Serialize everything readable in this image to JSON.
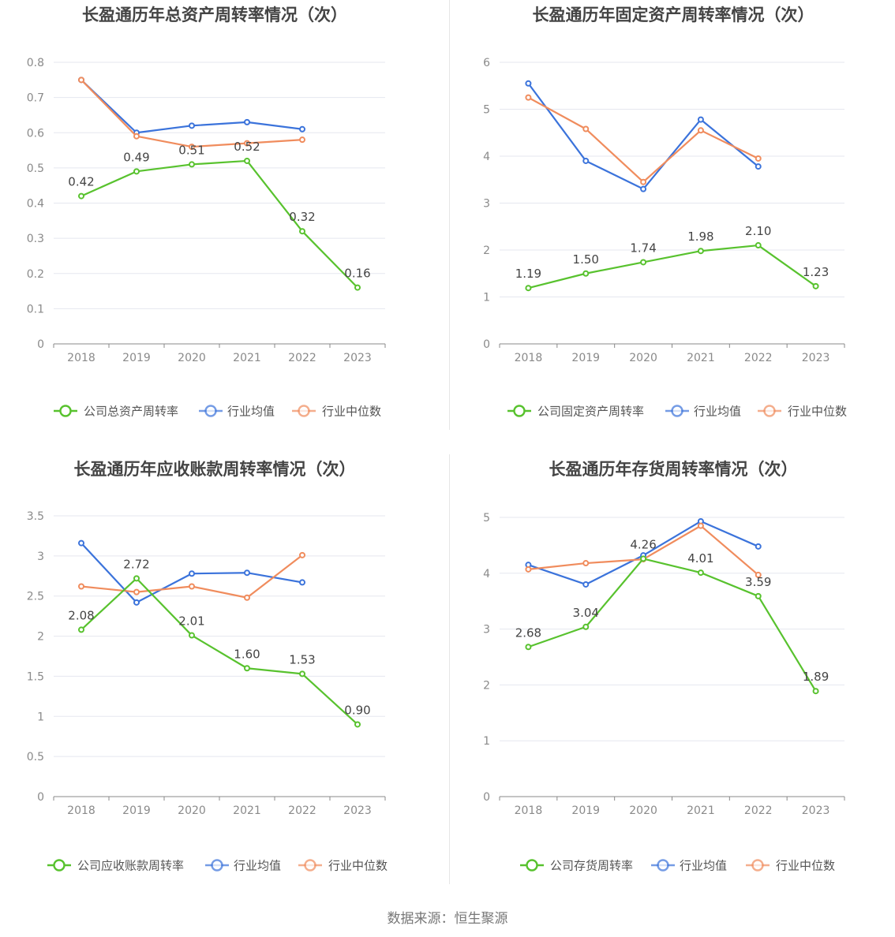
{
  "footer": "数据来源：恒生聚源",
  "colors": {
    "company": "#58c22e",
    "avg": "#3b73db",
    "median": "#f08c5d",
    "grid": "#e5e7ef",
    "axis": "#888888"
  },
  "chart_data": [
    {
      "type": "line",
      "title": "长盈通历年总资产周转率情况（次）",
      "x": [
        "2018",
        "2019",
        "2020",
        "2021",
        "2022",
        "2023"
      ],
      "yticks": [
        "0",
        "0.1",
        "0.2",
        "0.3",
        "0.4",
        "0.5",
        "0.6",
        "0.7",
        "0.8"
      ],
      "ylim": [
        0,
        0.8
      ],
      "series": [
        {
          "name": "公司总资产周转率",
          "key": "company",
          "values": [
            0.42,
            0.49,
            0.51,
            0.52,
            0.32,
            0.16
          ],
          "labels": [
            "0.42",
            "0.49",
            "0.51",
            "0.52",
            "0.32",
            "0.16"
          ]
        },
        {
          "name": "行业均值",
          "key": "avg",
          "values": [
            0.75,
            0.6,
            0.62,
            0.63,
            0.61,
            null
          ]
        },
        {
          "name": "行业中位数",
          "key": "median",
          "values": [
            0.75,
            0.59,
            0.56,
            0.57,
            0.58,
            null
          ]
        }
      ],
      "legend": "bottom"
    },
    {
      "type": "line",
      "title": "长盈通历年固定资产周转率情况（次）",
      "x": [
        "2018",
        "2019",
        "2020",
        "2021",
        "2022",
        "2023"
      ],
      "yticks": [
        "0",
        "1",
        "2",
        "3",
        "4",
        "5",
        "6"
      ],
      "ylim": [
        0,
        6
      ],
      "series": [
        {
          "name": "公司固定资产周转率",
          "key": "company",
          "values": [
            1.19,
            1.5,
            1.74,
            1.98,
            2.1,
            1.23
          ],
          "labels": [
            "1.19",
            "1.50",
            "1.74",
            "1.98",
            "2.10",
            "1.23"
          ]
        },
        {
          "name": "行业均值",
          "key": "avg",
          "values": [
            5.55,
            3.9,
            3.3,
            4.78,
            3.78,
            null
          ]
        },
        {
          "name": "行业中位数",
          "key": "median",
          "values": [
            5.25,
            4.58,
            3.45,
            4.55,
            3.95,
            null
          ]
        }
      ],
      "legend": "bottom"
    },
    {
      "type": "line",
      "title": "长盈通历年应收账款周转率情况（次）",
      "x": [
        "2018",
        "2019",
        "2020",
        "2021",
        "2022",
        "2023"
      ],
      "yticks": [
        "0",
        "0.5",
        "1",
        "1.5",
        "2",
        "2.5",
        "3",
        "3.5"
      ],
      "ylim": [
        0,
        3.5
      ],
      "series": [
        {
          "name": "公司应收账款周转率",
          "key": "company",
          "values": [
            2.08,
            2.72,
            2.01,
            1.6,
            1.53,
            0.9
          ],
          "labels": [
            "2.08",
            "2.72",
            "2.01",
            "1.60",
            "1.53",
            "0.90"
          ]
        },
        {
          "name": "行业均值",
          "key": "avg",
          "values": [
            3.16,
            2.42,
            2.78,
            2.79,
            2.67,
            null
          ]
        },
        {
          "name": "行业中位数",
          "key": "median",
          "values": [
            2.62,
            2.55,
            2.62,
            2.48,
            3.01,
            null
          ]
        }
      ],
      "legend": "bottom"
    },
    {
      "type": "line",
      "title": "长盈通历年存货周转率情况（次）",
      "x": [
        "2018",
        "2019",
        "2020",
        "2021",
        "2022",
        "2023"
      ],
      "yticks": [
        "0",
        "1",
        "2",
        "3",
        "4",
        "5"
      ],
      "ylim": [
        0,
        5
      ],
      "series": [
        {
          "name": "公司存货周转率",
          "key": "company",
          "values": [
            2.68,
            3.04,
            4.26,
            4.01,
            3.59,
            1.89
          ],
          "labels": [
            "2.68",
            "3.04",
            "4.26",
            "4.01",
            "3.59",
            "1.89"
          ]
        },
        {
          "name": "行业均值",
          "key": "avg",
          "values": [
            4.15,
            3.8,
            4.32,
            4.93,
            4.48,
            null
          ]
        },
        {
          "name": "行业中位数",
          "key": "median",
          "values": [
            4.07,
            4.18,
            4.25,
            4.85,
            3.97,
            null
          ]
        }
      ],
      "legend": "bottom"
    }
  ]
}
